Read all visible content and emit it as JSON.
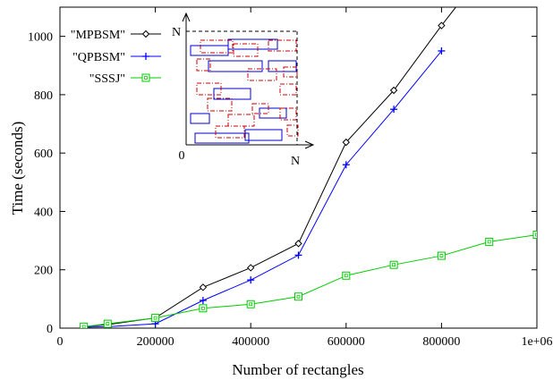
{
  "chart_data": {
    "type": "line",
    "xlabel": "Number of rectangles",
    "ylabel": "Time (seconds)",
    "xlim": [
      0,
      1000000
    ],
    "ylim": [
      0,
      1100
    ],
    "x_ticks": [
      0,
      200000,
      400000,
      600000,
      800000,
      1000000
    ],
    "x_tick_labels": [
      "0",
      "200000",
      "400000",
      "600000",
      "800000",
      "1e+06"
    ],
    "y_ticks": [
      0,
      200,
      400,
      600,
      800,
      1000
    ],
    "y_tick_labels": [
      "0",
      "200",
      "400",
      "600",
      "800",
      "1000"
    ],
    "grid": false,
    "legend_position": "top-left",
    "series": [
      {
        "name": "\"MPBSM\"",
        "color": "#000000",
        "marker": "diamond",
        "x": [
          50000,
          100000,
          200000,
          300000,
          400000,
          500000,
          600000,
          700000,
          800000,
          830000
        ],
        "y": [
          5,
          12,
          35,
          140,
          207,
          290,
          637,
          815,
          1037,
          1100
        ]
      },
      {
        "name": "\"QPBSM\"",
        "color": "#0000ff",
        "marker": "plus",
        "x": [
          50000,
          100000,
          200000,
          300000,
          400000,
          500000,
          600000,
          700000,
          800000
        ],
        "y": [
          3,
          5,
          15,
          95,
          165,
          250,
          560,
          750,
          950
        ]
      },
      {
        "name": "\"SSSJ\"",
        "color": "#00cc00",
        "marker": "square",
        "x": [
          50000,
          100000,
          200000,
          300000,
          400000,
          500000,
          600000,
          700000,
          800000,
          900000,
          1000000
        ],
        "y": [
          5,
          15,
          35,
          68,
          82,
          108,
          180,
          217,
          248,
          296,
          320
        ]
      }
    ],
    "inset": {
      "x_origin_label": "0",
      "x_axis_label": "N",
      "y_axis_label": "N",
      "rect_colors": {
        "blue": "#0000cc",
        "red": "#cc0000"
      }
    }
  }
}
